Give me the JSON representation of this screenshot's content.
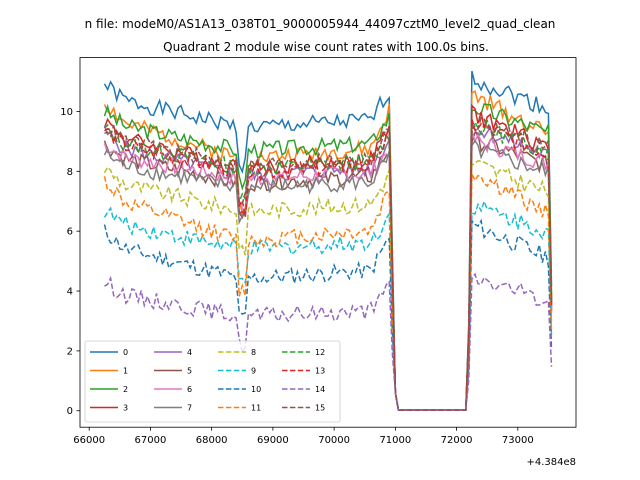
{
  "chart_data": {
    "type": "line",
    "suptitle": "n file: modeM0/AS1A13_038T01_9000005944_44097cztM0_level2_quad_clean",
    "title": "Quadrant 2 module wise count rates with 100.0s bins.",
    "xlabel": "",
    "ylabel": "",
    "x_offset_label": "+4.384e8",
    "xlim": [
      65850,
      73950
    ],
    "ylim": [
      -0.55,
      11.8
    ],
    "xticks": [
      66000,
      67000,
      68000,
      69000,
      70000,
      71000,
      72000,
      73000
    ],
    "xtick_labels": [
      "66000",
      "67000",
      "68000",
      "69000",
      "70000",
      "71000",
      "72000",
      "73000"
    ],
    "yticks": [
      0,
      2,
      4,
      6,
      8,
      10
    ],
    "ytick_labels": [
      "0",
      "2",
      "4",
      "6",
      "8",
      "10"
    ],
    "grid": false,
    "legend_placement": "lower-left",
    "legend_columns": 4,
    "series": [
      {
        "name": "0",
        "color": "#1f77b4",
        "dash": "solid",
        "base": 9.9,
        "amp": 1.0
      },
      {
        "name": "1",
        "color": "#ff7f0e",
        "dash": "solid",
        "base": 9.0,
        "amp": 1.3
      },
      {
        "name": "2",
        "color": "#2ca02c",
        "dash": "solid",
        "base": 9.1,
        "amp": 0.9
      },
      {
        "name": "3",
        "color": "#d62728",
        "dash": "solid",
        "base": 8.6,
        "amp": 1.1
      },
      {
        "name": "4",
        "color": "#9467bd",
        "dash": "solid",
        "base": 8.3,
        "amp": 1.0
      },
      {
        "name": "5",
        "color": "#8c564b",
        "dash": "solid",
        "base": 8.0,
        "amp": 0.9
      },
      {
        "name": "6",
        "color": "#e377c2",
        "dash": "solid",
        "base": 8.1,
        "amp": 0.8
      },
      {
        "name": "7",
        "color": "#7f7f7f",
        "dash": "solid",
        "base": 7.8,
        "amp": 0.8
      },
      {
        "name": "8",
        "color": "#bcbd22",
        "dash": "dashed",
        "base": 7.1,
        "amp": 1.0
      },
      {
        "name": "9",
        "color": "#17becf",
        "dash": "dashed",
        "base": 5.8,
        "amp": 0.9
      },
      {
        "name": "10",
        "color": "#1f77b4",
        "dash": "dashed",
        "base": 4.9,
        "amp": 1.1
      },
      {
        "name": "11",
        "color": "#ff7f0e",
        "dash": "dashed",
        "base": 6.3,
        "amp": 1.4
      },
      {
        "name": "12",
        "color": "#2ca02c",
        "dash": "dashed",
        "base": 8.5,
        "amp": 0.9
      },
      {
        "name": "13",
        "color": "#d62728",
        "dash": "dashed",
        "base": 8.4,
        "amp": 1.0
      },
      {
        "name": "14",
        "color": "#9467bd",
        "dash": "dashed",
        "base": 3.5,
        "amp": 0.8
      },
      {
        "name": "15",
        "color": "#8c564b",
        "dash": "dashed",
        "base": 8.6,
        "amp": 0.9
      }
    ]
  }
}
